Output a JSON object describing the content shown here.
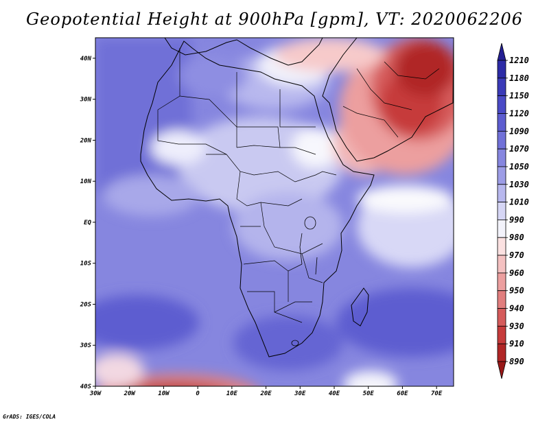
{
  "title": "Geopotential Height at 900hPa [gpm], VT: 2020062206",
  "credit": "GrADS: IGES/COLA",
  "map": {
    "lon_min": -30,
    "lon_max": 75,
    "lat_min": -40,
    "lat_max": 45,
    "lat_ticks": [
      {
        "value": 40,
        "label": "40N"
      },
      {
        "value": 30,
        "label": "30N"
      },
      {
        "value": 20,
        "label": "20N"
      },
      {
        "value": 10,
        "label": "10N"
      },
      {
        "value": 0,
        "label": "EQ"
      },
      {
        "value": -10,
        "label": "10S"
      },
      {
        "value": -20,
        "label": "20S"
      },
      {
        "value": -30,
        "label": "30S"
      },
      {
        "value": -40,
        "label": "40S"
      }
    ],
    "lon_ticks": [
      {
        "value": -30,
        "label": "30W"
      },
      {
        "value": -20,
        "label": "20W"
      },
      {
        "value": -10,
        "label": "10W"
      },
      {
        "value": 0,
        "label": "0"
      },
      {
        "value": 10,
        "label": "10E"
      },
      {
        "value": 20,
        "label": "20E"
      },
      {
        "value": 30,
        "label": "30E"
      },
      {
        "value": 40,
        "label": "40E"
      },
      {
        "value": 50,
        "label": "50E"
      },
      {
        "value": 60,
        "label": "60E"
      },
      {
        "value": 70,
        "label": "70E"
      }
    ]
  },
  "colorbar": {
    "labels": [
      "1210",
      "1180",
      "1150",
      "1120",
      "1090",
      "1070",
      "1050",
      "1030",
      "1010",
      "990",
      "980",
      "970",
      "960",
      "950",
      "940",
      "930",
      "910",
      "890"
    ],
    "colors": [
      "#241f93",
      "#2c2ba6",
      "#3a3ab8",
      "#4a4ac6",
      "#5d5dd0",
      "#7171d8",
      "#8686df",
      "#9d9de6",
      "#b8b8ee",
      "#d6d6f5",
      "#f3f3fb",
      "#fbe1e1",
      "#f4c1c1",
      "#ec9f9f",
      "#e17e7e",
      "#d55b5b",
      "#c63b3b",
      "#b02626",
      "#981818"
    ]
  }
}
